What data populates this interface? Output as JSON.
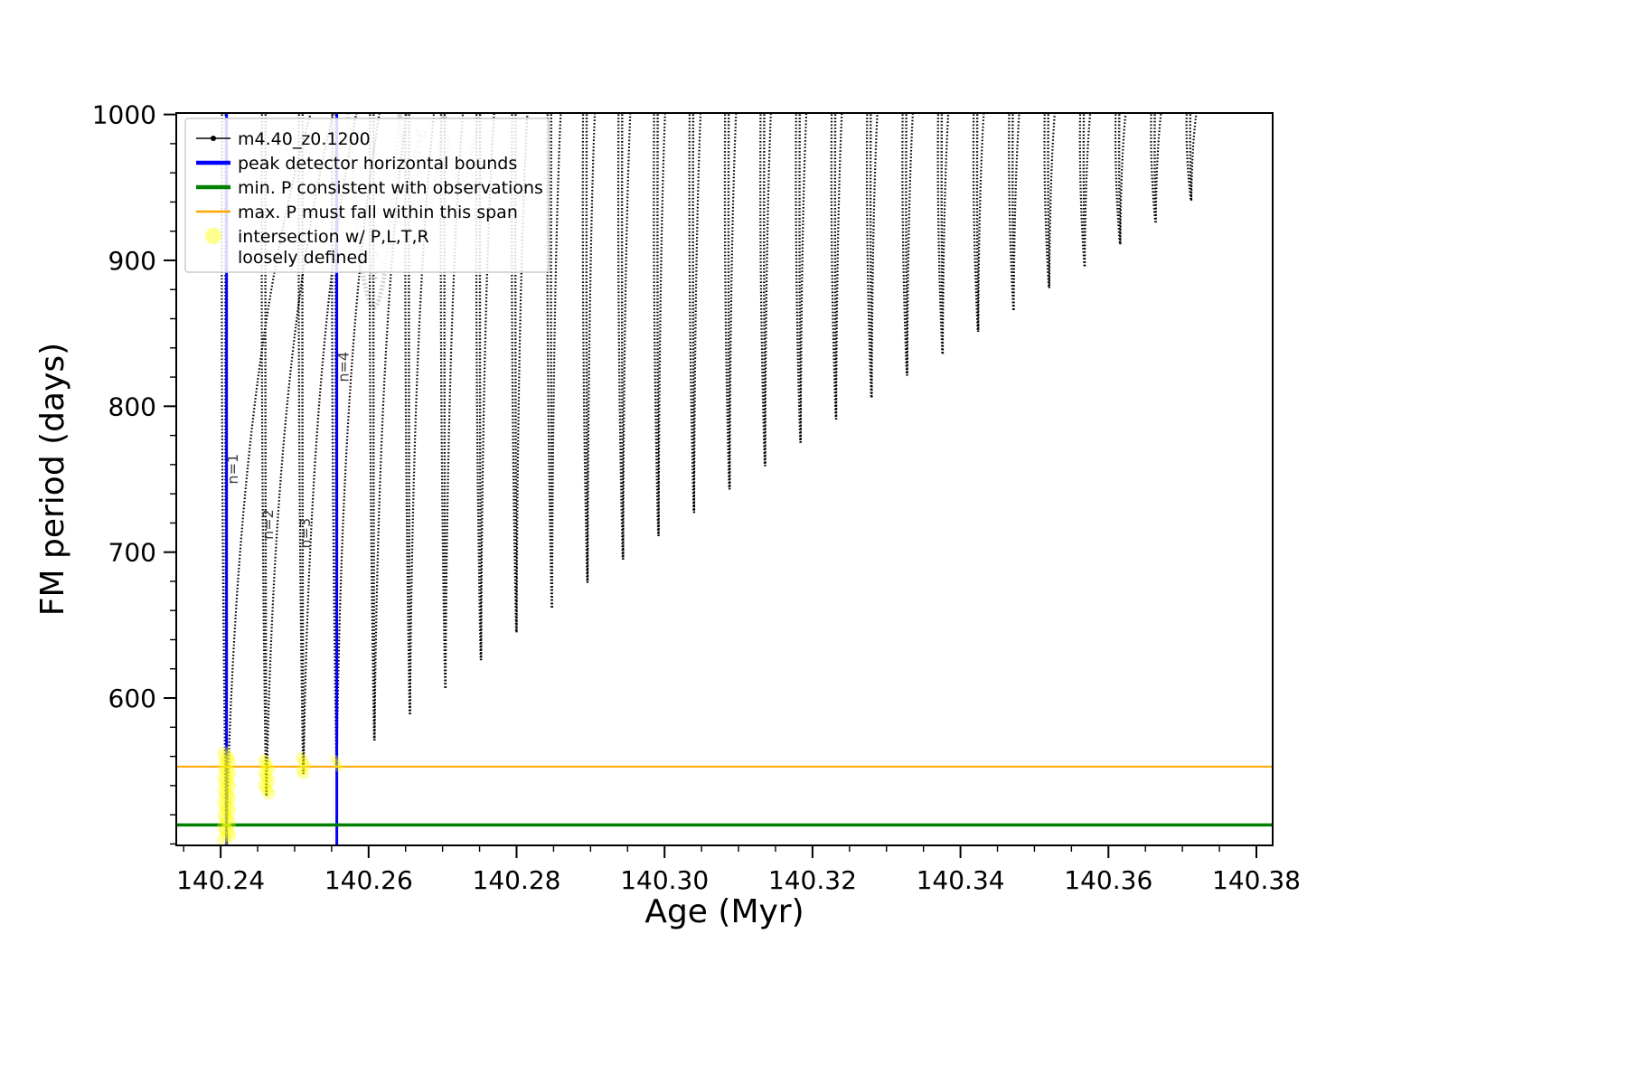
{
  "figure": {
    "background": "#ffffff"
  },
  "chart_data": {
    "type": "line",
    "title": "",
    "xlabel": "Age (Myr)",
    "ylabel": "FM period (days)",
    "xlim": [
      140.234,
      140.3822
    ],
    "ylim": [
      499,
      1001
    ],
    "x_major_ticks": [
      140.24,
      140.26,
      140.28,
      140.3,
      140.32,
      140.34,
      140.36,
      140.38
    ],
    "x_major_tick_labels": [
      "140.24",
      "140.26",
      "140.28",
      "140.30",
      "140.32",
      "140.34",
      "140.36",
      "140.38"
    ],
    "x_minor_step": 0.005,
    "y_major_ticks": [
      600,
      700,
      800,
      900,
      1000
    ],
    "y_major_tick_labels": [
      "600",
      "700",
      "800",
      "900",
      "1000"
    ],
    "y_minor_step": 20,
    "grid": false,
    "colors": {
      "series": "#000000",
      "peak_bounds": "#0000ff",
      "min_p": "#008000",
      "max_p_span": "#ffa500",
      "highlight": "#ffff00",
      "ghost": "#cccccc"
    },
    "legend": {
      "position": "upper left",
      "entries": [
        {
          "label": "m4.40_z0.1200",
          "type": "line-marker",
          "color": "#000000",
          "width": 1.5
        },
        {
          "label": "peak detector horizontal bounds",
          "type": "line",
          "color": "#0000ff",
          "width": 4.5
        },
        {
          "label": "min. P consistent with observations",
          "type": "line",
          "color": "#008000",
          "width": 4.5
        },
        {
          "label": "max. P must fall within this span",
          "type": "line",
          "color": "#ffa500",
          "width": 2.5
        },
        {
          "label": "intersection w/ P,L,T,R",
          "label2": "loosely defined",
          "type": "marker",
          "color": "#ffff00"
        }
      ]
    },
    "series_label": "m4.40_z0.1200",
    "vlines": [
      {
        "x": 140.2408,
        "color": "#0000ff",
        "width": 3
      },
      {
        "x": 140.2557,
        "color": "#0000ff",
        "width": 3
      }
    ],
    "hlines": [
      {
        "y": 513,
        "color": "#008000",
        "width": 3.5
      },
      {
        "y": 553,
        "color": "#ffa500",
        "width": 2
      }
    ],
    "spikes": [
      {
        "age": 140.2408,
        "tip": 505,
        "lean": 0.0116
      },
      {
        "age": 140.2462,
        "tip": 533,
        "lean": 0.0092
      },
      {
        "age": 140.2512,
        "tip": 548,
        "lean": 0.0073
      },
      {
        "age": 140.2557,
        "tip": 554,
        "lean": 0.0059
      },
      {
        "age": 140.2608,
        "tip": 571,
        "lean": 0.0044
      },
      {
        "age": 140.2656,
        "tip": 589,
        "lean": 0.0033
      },
      {
        "age": 140.2704,
        "tip": 607,
        "lean": 0.0024
      },
      {
        "age": 140.2752,
        "tip": 626,
        "lean": 0.0018
      },
      {
        "age": 140.28,
        "tip": 645,
        "lean": 0.0015
      },
      {
        "age": 140.2848,
        "tip": 662,
        "lean": 0.0012
      },
      {
        "age": 140.2896,
        "tip": 679,
        "lean": 0.001
      },
      {
        "age": 140.2944,
        "tip": 695,
        "lean": 0.001
      },
      {
        "age": 140.2992,
        "tip": 711,
        "lean": 0.0009
      },
      {
        "age": 140.304,
        "tip": 727,
        "lean": 0.0009
      },
      {
        "age": 140.3088,
        "tip": 743,
        "lean": 0.0009
      },
      {
        "age": 140.3136,
        "tip": 759,
        "lean": 0.0008
      },
      {
        "age": 140.3184,
        "tip": 775,
        "lean": 0.0008
      },
      {
        "age": 140.3232,
        "tip": 791,
        "lean": 0.0008
      },
      {
        "age": 140.328,
        "tip": 806,
        "lean": 0.0008
      },
      {
        "age": 140.3328,
        "tip": 821,
        "lean": 0.0008
      },
      {
        "age": 140.3376,
        "tip": 836,
        "lean": 0.0008
      },
      {
        "age": 140.3424,
        "tip": 851,
        "lean": 0.0008
      },
      {
        "age": 140.3472,
        "tip": 866,
        "lean": 0.0008
      },
      {
        "age": 140.352,
        "tip": 881,
        "lean": 0.0008
      },
      {
        "age": 140.3568,
        "tip": 896,
        "lean": 0.0008
      },
      {
        "age": 140.3616,
        "tip": 911,
        "lean": 0.0008
      },
      {
        "age": 140.3664,
        "tip": 926,
        "lean": 0.0008
      },
      {
        "age": 140.3712,
        "tip": 941,
        "lean": 0.0008
      }
    ],
    "highlights": [
      {
        "age": 140.2408,
        "p_from": 503,
        "p_to": 562,
        "r": 8
      },
      {
        "age": 140.2462,
        "p_from": 533,
        "p_to": 557,
        "r": 7
      },
      {
        "age": 140.2512,
        "p_from": 547,
        "p_to": 559,
        "r": 6
      },
      {
        "age": 140.2557,
        "p_from": 552,
        "p_to": 558,
        "r": 5
      }
    ],
    "annotations": [
      {
        "text": "n=1",
        "age": 140.2423,
        "period": 757,
        "rot": -90,
        "color": "#3a3a3a"
      },
      {
        "text": "n=2",
        "age": 140.2471,
        "period": 719,
        "rot": -90,
        "color": "#3a3a3a"
      },
      {
        "text": "n=3",
        "age": 140.2521,
        "period": 713,
        "rot": -90,
        "color": "#3a3a3a"
      },
      {
        "text": "n=4",
        "age": 140.2573,
        "period": 827,
        "rot": -90,
        "color": "#3a3a3a"
      },
      {
        "text": "n=5",
        "age": 140.2612,
        "period": 897,
        "rot": -90,
        "color": "#c0c0c0"
      },
      {
        "text": "n=6",
        "age": 140.2674,
        "period": 979,
        "rot": -75,
        "color": "#c0c0c0"
      }
    ],
    "ghost_tracks": [
      {
        "a1": 140.2572,
        "a2": 140.2642,
        "dip": 868
      },
      {
        "a1": 140.2642,
        "a2": 140.2702,
        "dip": 928
      },
      {
        "a1": 140.2702,
        "a2": 140.2748,
        "dip": 952
      }
    ]
  }
}
